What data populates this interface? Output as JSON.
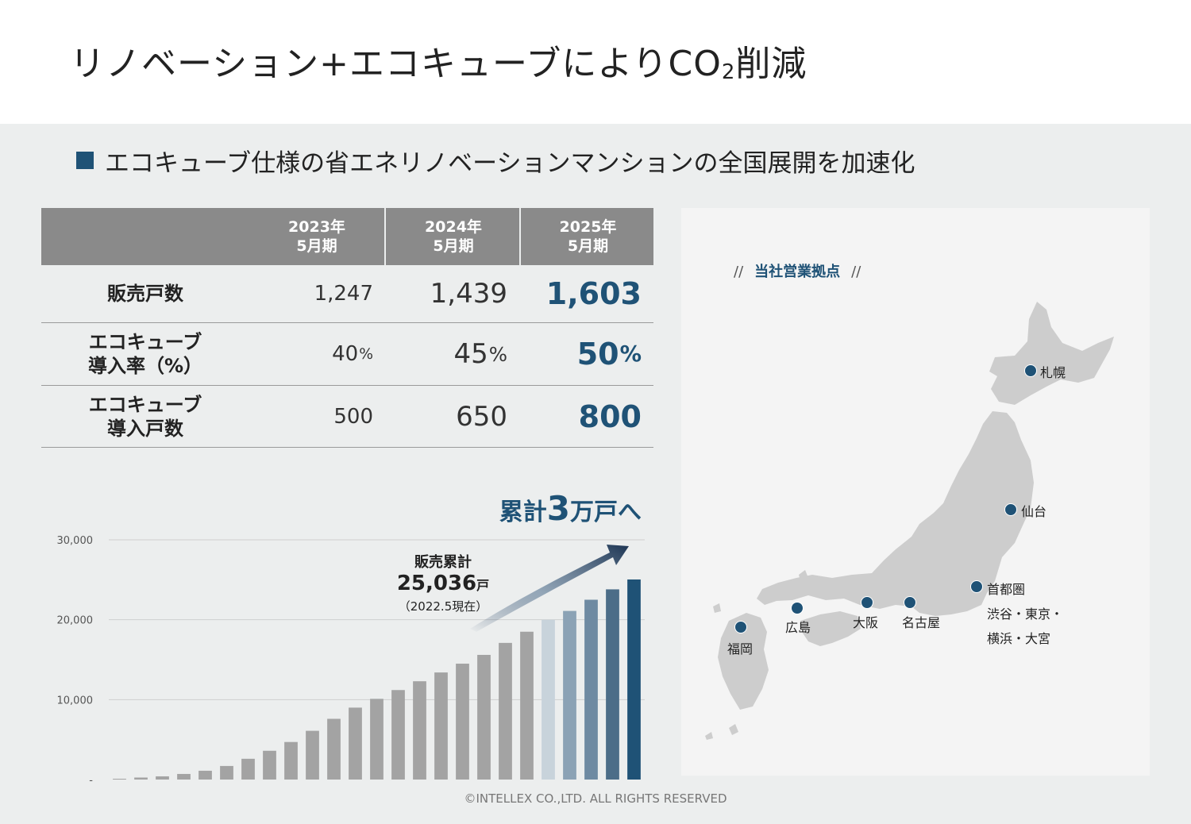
{
  "title": {
    "main": "リノベーション+エコキューブによりCO",
    "sub": "2",
    "tail": "削減"
  },
  "subheading": "エコキューブ仕様の省エネリノベーションマンションの全国展開を加速化",
  "table": {
    "headers": [
      {
        "year": "2023年",
        "period": "5月期"
      },
      {
        "year": "2024年",
        "period": "5月期"
      },
      {
        "year": "2025年",
        "period": "5月期"
      }
    ],
    "rows": [
      {
        "label1": "販売戸数",
        "label2": "",
        "values": [
          "1,247",
          "1,439",
          "1,603"
        ],
        "unit": ""
      },
      {
        "label1": "エコキューブ",
        "label2": "導入率（%）",
        "values": [
          "40",
          "45",
          "50"
        ],
        "unit": "%"
      },
      {
        "label1": "エコキューブ",
        "label2": "導入戸数",
        "values": [
          "500",
          "650",
          "800"
        ],
        "unit": ""
      }
    ]
  },
  "chart_data": {
    "type": "bar",
    "ylim": [
      0,
      30000
    ],
    "yticks": [
      {
        "value": 30000,
        "label": "30,000"
      },
      {
        "value": 20000,
        "label": "20,000"
      },
      {
        "value": 10000,
        "label": "10,000"
      },
      {
        "value": 0,
        "label": "-"
      }
    ],
    "grid": true,
    "values": [
      100,
      250,
      400,
      700,
      1100,
      1700,
      2600,
      3600,
      4700,
      6100,
      7600,
      9000,
      10100,
      11200,
      12300,
      13400,
      14500,
      15600,
      17100,
      18500,
      20000,
      21100,
      22500,
      23800,
      25036
    ],
    "colors": [
      "#a3a3a3",
      "#a3a3a3",
      "#a3a3a3",
      "#a3a3a3",
      "#a3a3a3",
      "#a3a3a3",
      "#a3a3a3",
      "#a3a3a3",
      "#a3a3a3",
      "#a3a3a3",
      "#a3a3a3",
      "#a3a3a3",
      "#a3a3a3",
      "#a3a3a3",
      "#a3a3a3",
      "#a3a3a3",
      "#a3a3a3",
      "#a3a3a3",
      "#a3a3a3",
      "#a3a3a3",
      "#c8d3db",
      "#8ba2b5",
      "#6e8aa2",
      "#4c6d88",
      "#1f5276"
    ],
    "headline": {
      "pre": "累計",
      "num": "3",
      "post": "万戸へ"
    },
    "callout": {
      "label": "販売累計",
      "value": "25,036",
      "unit": "戸",
      "note": "（2022.5現在）"
    }
  },
  "map": {
    "title": "当社営業拠点",
    "slash": "//",
    "cities": [
      "札幌",
      "仙台",
      "首都圏",
      "渋谷・東京・",
      "横浜・大宮",
      "名古屋",
      "大阪",
      "広島",
      "福岡"
    ]
  },
  "footer": "©INTELLEX CO.,LTD. ALL RIGHTS RESERVED",
  "colors": {
    "accent": "#1f5276",
    "bar_gray": "#a3a3a3",
    "header_gray": "#8a8a8a",
    "panel_bg": "#eceeee"
  }
}
